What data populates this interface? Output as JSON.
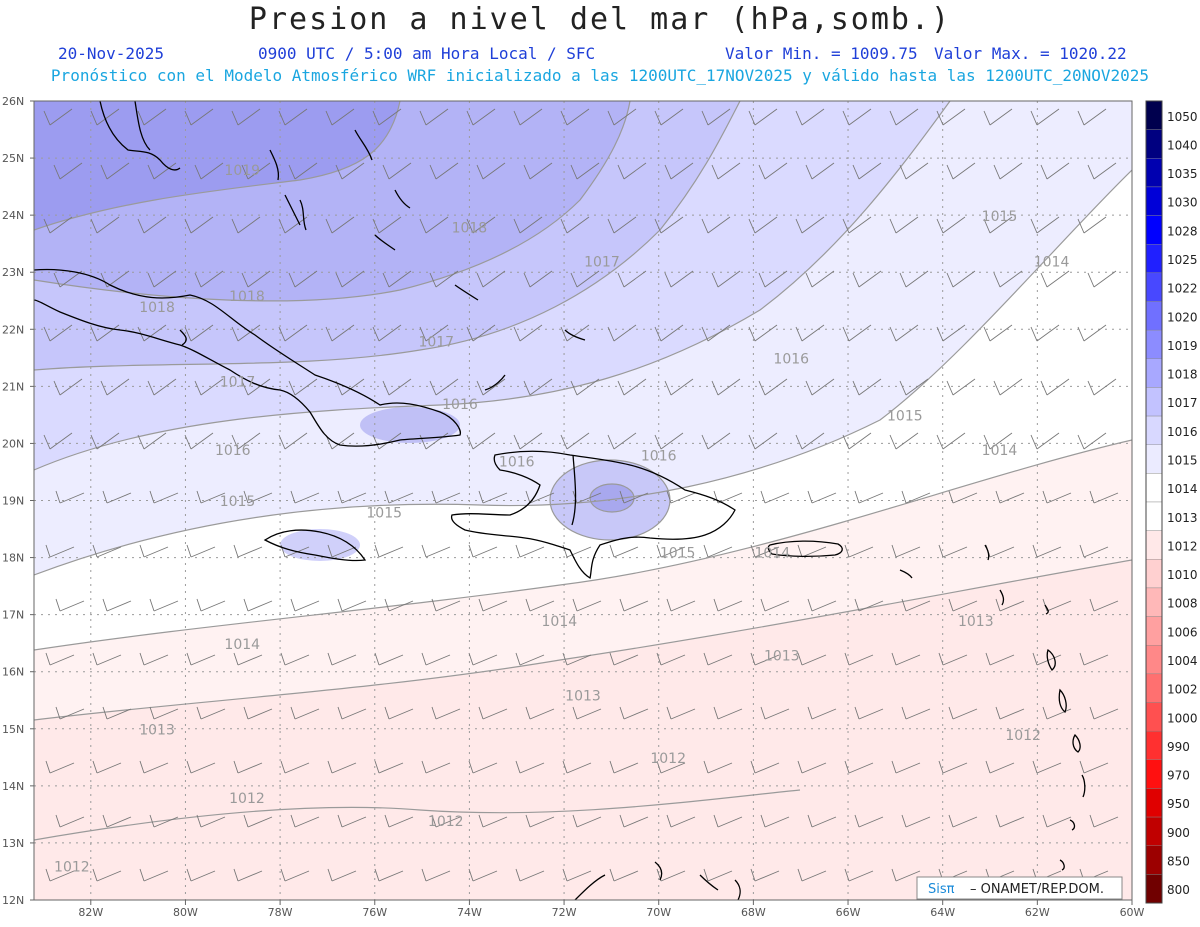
{
  "header": {
    "title": "Presion a nivel del mar (hPa,somb.)",
    "date": "20-Nov-2025",
    "time": "0900 UTC / 5:00 am Hora Local / SFC",
    "min": "Valor Min. = 1009.75",
    "max": "Valor Max. = 1020.22",
    "subtitle": "Pronóstico con el Modelo Atmosférico WRF inicializado a las 1200UTC_17NOV2025 y válido hasta las  1200UTC_20NOV2025"
  },
  "map": {
    "lon_range": [
      -83.2,
      -60
    ],
    "lat_range": [
      12,
      26
    ],
    "lat_labels": [
      "26N",
      "25N",
      "24N",
      "23N",
      "22N",
      "21N",
      "20N",
      "19N",
      "18N",
      "17N",
      "16N",
      "15N",
      "14N",
      "13N",
      "12N"
    ],
    "lon_labels": [
      "82W",
      "80W",
      "78W",
      "76W",
      "74W",
      "72W",
      "70W",
      "68W",
      "66W",
      "64W",
      "62W",
      "60W"
    ],
    "contour_labels": [
      {
        "text": "1019",
        "lon": -78.8,
        "lat": 24.7
      },
      {
        "text": "1018",
        "lon": -74.0,
        "lat": 23.7
      },
      {
        "text": "1018",
        "lon": -78.7,
        "lat": 22.5
      },
      {
        "text": "1018",
        "lon": -80.6,
        "lat": 22.3
      },
      {
        "text": "1017",
        "lon": -71.2,
        "lat": 23.1
      },
      {
        "text": "1017",
        "lon": -74.7,
        "lat": 21.7
      },
      {
        "text": "1017",
        "lon": -78.9,
        "lat": 21.0
      },
      {
        "text": "1016",
        "lon": -67.2,
        "lat": 21.4
      },
      {
        "text": "1016",
        "lon": -74.2,
        "lat": 20.6
      },
      {
        "text": "1016",
        "lon": -79.0,
        "lat": 19.8
      },
      {
        "text": "1016",
        "lon": -73.0,
        "lat": 19.6
      },
      {
        "text": "1016",
        "lon": -70.0,
        "lat": 19.7
      },
      {
        "text": "1015",
        "lon": -62.8,
        "lat": 23.9
      },
      {
        "text": "1015",
        "lon": -64.8,
        "lat": 20.4
      },
      {
        "text": "1015",
        "lon": -78.9,
        "lat": 18.9
      },
      {
        "text": "1015",
        "lon": -75.8,
        "lat": 18.7
      },
      {
        "text": "1015",
        "lon": -69.6,
        "lat": 18.0
      },
      {
        "text": "1014",
        "lon": -61.7,
        "lat": 23.1
      },
      {
        "text": "1014",
        "lon": -62.8,
        "lat": 19.8
      },
      {
        "text": "1014",
        "lon": -67.6,
        "lat": 18.0
      },
      {
        "text": "1014",
        "lon": -72.1,
        "lat": 16.8
      },
      {
        "text": "1014",
        "lon": -78.8,
        "lat": 16.4
      },
      {
        "text": "1013",
        "lon": -63.3,
        "lat": 16.8
      },
      {
        "text": "1013",
        "lon": -67.4,
        "lat": 16.2
      },
      {
        "text": "1013",
        "lon": -71.6,
        "lat": 15.5
      },
      {
        "text": "1013",
        "lon": -80.6,
        "lat": 14.9
      },
      {
        "text": "1012",
        "lon": -62.3,
        "lat": 14.8
      },
      {
        "text": "1012",
        "lon": -69.8,
        "lat": 14.4
      },
      {
        "text": "1012",
        "lon": -78.7,
        "lat": 13.7
      },
      {
        "text": "1012",
        "lon": -74.5,
        "lat": 13.3
      },
      {
        "text": "1012",
        "lon": -82.4,
        "lat": 12.5
      }
    ],
    "colorbar": {
      "levels": [
        "1050",
        "1040",
        "1035",
        "1030",
        "1028",
        "1025",
        "1022",
        "1020",
        "1019",
        "1018",
        "1017",
        "1016",
        "1015",
        "1014",
        "1013",
        "1012",
        "1010",
        "1008",
        "1006",
        "1004",
        "1002",
        "1000",
        "990",
        "970",
        "950",
        "900",
        "850",
        "800"
      ],
      "colors": [
        "#00004e",
        "#000080",
        "#0000b0",
        "#0000d8",
        "#0000ff",
        "#2020ff",
        "#4848ff",
        "#7070ff",
        "#8c8cff",
        "#a8a8ff",
        "#c2c2ff",
        "#d8d8ff",
        "#ebebff",
        "#ffffff",
        "#ffffff",
        "#ffe8e8",
        "#ffd0d0",
        "#ffb8b8",
        "#ffa0a0",
        "#ff8888",
        "#ff7070",
        "#ff5050",
        "#ff3030",
        "#ff1010",
        "#e00000",
        "#c00000",
        "#9c0000",
        "#700000"
      ]
    },
    "credit_brand": "Sisπ",
    "credit_text": " – ONAMET/REP.DOM."
  }
}
